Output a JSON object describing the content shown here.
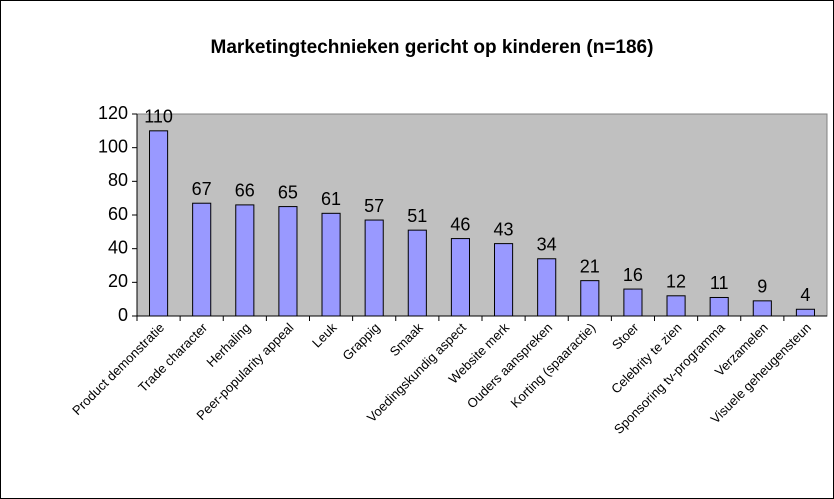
{
  "chart_data": {
    "type": "bar",
    "title": "Marketingtechnieken gericht op kinderen (n=186)",
    "categories": [
      "Product demonstratie",
      "Trade character",
      "Herhaling",
      "Peer-popularity appeal",
      "Leuk",
      "Grappig",
      "Smaak",
      "Voedingskundig aspect",
      "Website merk",
      "Ouders aanspreken",
      "Korting (spaaractie)",
      "Stoer",
      "Celebrity te zien",
      "Sponsoring tv-programma",
      "Verzamelen",
      "Visuele geheugensteun"
    ],
    "values": [
      110,
      67,
      66,
      65,
      61,
      57,
      51,
      46,
      43,
      34,
      21,
      16,
      12,
      11,
      9,
      4
    ],
    "color": "#9999ff",
    "ylim": [
      0,
      120
    ],
    "yticks": [
      0,
      20,
      40,
      60,
      80,
      100,
      120
    ],
    "grid": false
  }
}
